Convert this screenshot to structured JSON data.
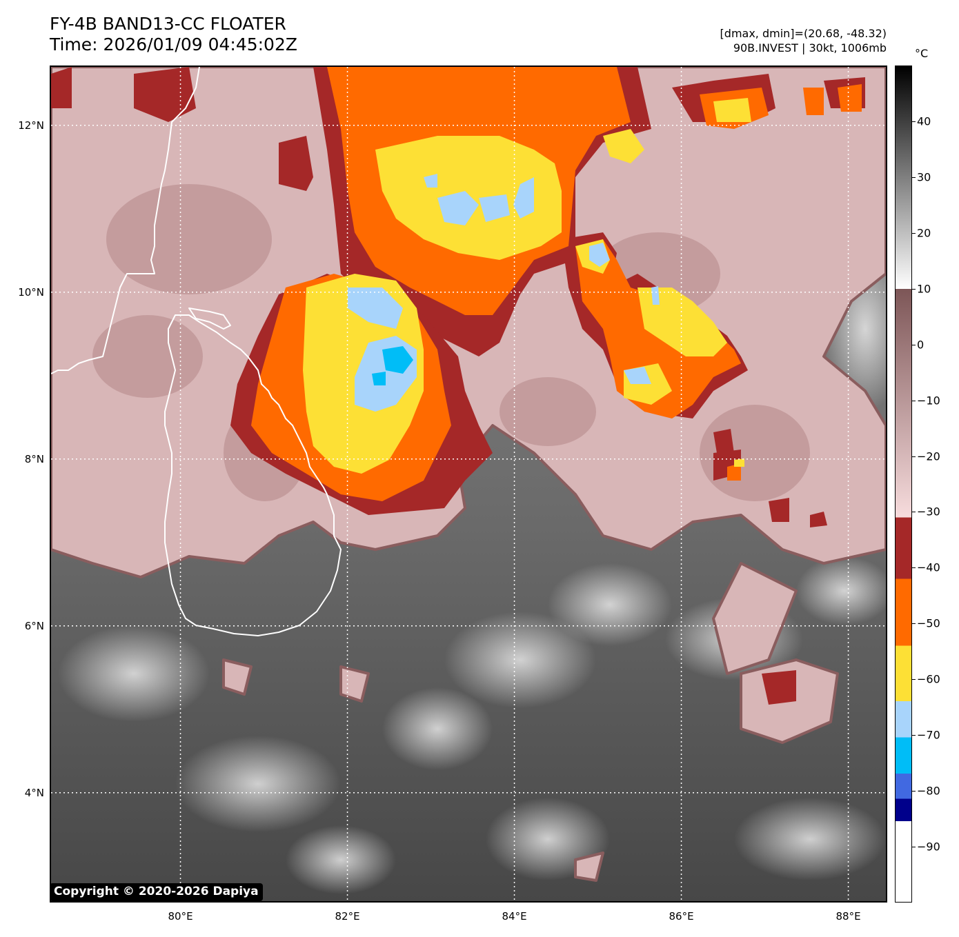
{
  "title_line1": "FY-4B BAND13-CC FLOATER",
  "title_line2": "Time: 2026/01/09 04:45:02Z",
  "info_line1": "[dmax, dmin]=(20.68, -48.32)",
  "info_line2": "90B.INVEST | 30kt, 1006mb",
  "copyright": "Copyright © 2020-2026 Dapiya",
  "map": {
    "lon_range": [
      78.45,
      88.45
    ],
    "lat_range": [
      2.7,
      12.7
    ],
    "lat_labels": [
      {
        "value": 12,
        "text": "12°N"
      },
      {
        "value": 10,
        "text": "10°N"
      },
      {
        "value": 8,
        "text": "8°N"
      },
      {
        "value": 6,
        "text": "6°N"
      },
      {
        "value": 4,
        "text": "4°N"
      }
    ],
    "lon_labels": [
      {
        "value": 80,
        "text": "80°E"
      },
      {
        "value": 82,
        "text": "82°E"
      },
      {
        "value": 84,
        "text": "84°E"
      },
      {
        "value": 86,
        "text": "86°E"
      },
      {
        "value": 88,
        "text": "88°E"
      }
    ],
    "colors": {
      "gray_dark": "#4a4a4a",
      "gray_light": "#d0d0d0",
      "pink_light": "#e8cfd0",
      "pink_dark": "#8a5d5e",
      "maroon": "#9b2323",
      "orange": "#ff6a00",
      "yellow": "#fde035",
      "light_blue": "#a8d4fb",
      "cyan": "#00bdf7",
      "coast": "#ffffff"
    }
  },
  "colorbar": {
    "unit": "°C",
    "range": [
      -100,
      50
    ],
    "ticks": [
      {
        "value": 40,
        "text": "40"
      },
      {
        "value": 30,
        "text": "30"
      },
      {
        "value": 20,
        "text": "20"
      },
      {
        "value": 10,
        "text": "10"
      },
      {
        "value": 0,
        "text": "0"
      },
      {
        "value": -10,
        "text": "−10"
      },
      {
        "value": -20,
        "text": "−20"
      },
      {
        "value": -30,
        "text": "−30"
      },
      {
        "value": -40,
        "text": "−40"
      },
      {
        "value": -50,
        "text": "−50"
      },
      {
        "value": -60,
        "text": "−60"
      },
      {
        "value": -70,
        "text": "−70"
      },
      {
        "value": -80,
        "text": "−80"
      },
      {
        "value": -90,
        "text": "−90"
      }
    ],
    "segments": [
      {
        "from": 50,
        "to": 10,
        "gradient": [
          "#000000",
          "#ffffff"
        ]
      },
      {
        "from": 10,
        "to": -31,
        "gradient": [
          "#7d5657",
          "#f7dcdd"
        ]
      },
      {
        "from": -31,
        "to": -42,
        "color": "#a52828"
      },
      {
        "from": -42,
        "to": -54,
        "color": "#ff6a00"
      },
      {
        "from": -54,
        "to": -64,
        "color": "#fde035"
      },
      {
        "from": -64,
        "to": -70.5,
        "color": "#a8d4fb"
      },
      {
        "from": -70.5,
        "to": -77,
        "color": "#00bdf7"
      },
      {
        "from": -77,
        "to": -81.5,
        "color": "#4169e1"
      },
      {
        "from": -81.5,
        "to": -85.5,
        "color": "#00008b"
      },
      {
        "from": -85.5,
        "to": -100,
        "color": "#ffffff"
      }
    ]
  }
}
